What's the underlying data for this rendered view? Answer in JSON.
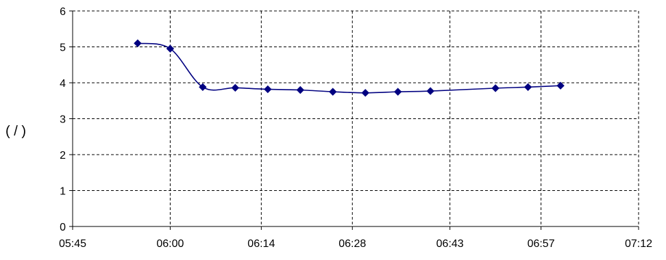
{
  "chart_data": {
    "type": "line",
    "title": "",
    "xlabel": "",
    "ylabel": "( / )",
    "x_ticks": [
      "05:45",
      "06:00",
      "06:14",
      "06:28",
      "06:43",
      "06:57",
      "07:12"
    ],
    "xlim": [
      "05:45",
      "07:12"
    ],
    "ylim": [
      0,
      6
    ],
    "y_ticks": [
      0,
      1,
      2,
      3,
      4,
      5,
      6
    ],
    "grid": true,
    "grid_style": "dashed",
    "legend": "none",
    "smooth": true,
    "series": [
      {
        "color": "#000080",
        "marker": "diamond",
        "points": [
          {
            "x": "05:55",
            "y": 5.1
          },
          {
            "x": "06:00",
            "y": 4.95
          },
          {
            "x": "06:05",
            "y": 3.88
          },
          {
            "x": "06:10",
            "y": 3.86
          },
          {
            "x": "06:15",
            "y": 3.82
          },
          {
            "x": "06:20",
            "y": 3.8
          },
          {
            "x": "06:25",
            "y": 3.75
          },
          {
            "x": "06:30",
            "y": 3.72
          },
          {
            "x": "06:35",
            "y": 3.75
          },
          {
            "x": "06:40",
            "y": 3.77
          },
          {
            "x": "06:50",
            "y": 3.85
          },
          {
            "x": "06:55",
            "y": 3.88
          },
          {
            "x": "07:00",
            "y": 3.92
          }
        ]
      }
    ]
  }
}
